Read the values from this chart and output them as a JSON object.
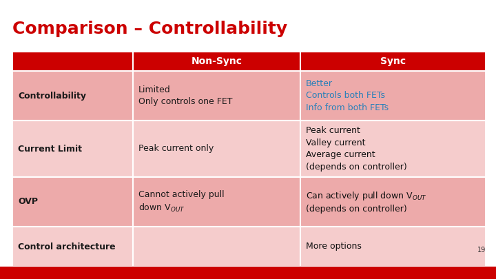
{
  "title": "Comparison – Controllability",
  "title_color": "#CC0000",
  "title_fontsize": 18,
  "background_color": "#FFFFFF",
  "header_bg": "#CC0000",
  "header_text_color": "#FFFFFF",
  "row_bg_dark": "#EDAAAA",
  "row_bg_light": "#F5CCCC",
  "col_headers": [
    "Non-Sync",
    "Sync"
  ],
  "rows": [
    {
      "label": "Controllability",
      "nonsync": "Limited\nOnly controls one FET",
      "sync": "Better\nControls both FETs\nInfo from both FETs",
      "sync_color": "#2980B9",
      "bg": "dark"
    },
    {
      "label": "Current Limit",
      "nonsync": "Peak current only",
      "sync": "Peak current\nValley current\nAverage current\n(depends on controller)",
      "sync_color": "#111111",
      "bg": "light"
    },
    {
      "label": "OVP",
      "nonsync": "Cannot actively pull\ndown V$_{OUT}$",
      "sync": "Can actively pull down V$_{OUT}$\n(depends on controller)",
      "sync_color": "#111111",
      "bg": "dark"
    },
    {
      "label": "Control architecture",
      "nonsync": "",
      "sync": "More options",
      "sync_color": "#111111",
      "bg": "light"
    }
  ],
  "footer_bg": "#CC0000",
  "page_number": "19",
  "label_fontsize": 9,
  "cell_fontsize": 9,
  "header_fontsize": 10
}
